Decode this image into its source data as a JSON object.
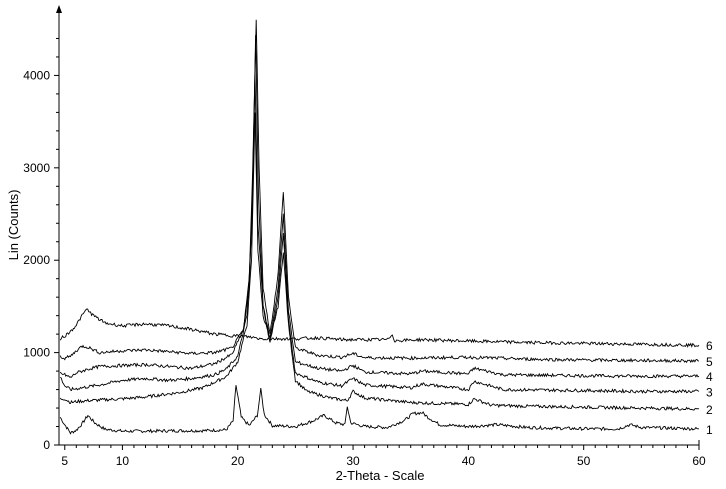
{
  "colors": {
    "background": "#ffffff",
    "ink": "#000000"
  },
  "chart_data": {
    "type": "line",
    "title": "",
    "xlabel": "2-Theta - Scale",
    "ylabel": "Lin (Counts)",
    "xlim": [
      4.5,
      60
    ],
    "ylim": [
      0,
      4600
    ],
    "x_ticks": [
      5,
      10,
      20,
      30,
      40,
      50,
      60
    ],
    "x_tick_labels": [
      "5",
      "10",
      "20",
      "30",
      "40",
      "50",
      "60"
    ],
    "y_ticks": [
      0,
      1000,
      2000,
      3000,
      4000
    ],
    "y_tick_labels": [
      "0",
      "1000",
      "2000",
      "3000",
      "4000"
    ],
    "grid": false,
    "legend": "curve numbers at right end",
    "series": [
      {
        "name": "1",
        "points": [
          [
            4.6,
            300
          ],
          [
            5,
            220
          ],
          [
            5.5,
            130
          ],
          [
            6,
            160
          ],
          [
            6.5,
            230
          ],
          [
            7,
            320
          ],
          [
            7.6,
            240
          ],
          [
            8.5,
            170
          ],
          [
            10,
            150
          ],
          [
            12,
            150
          ],
          [
            15,
            155
          ],
          [
            17,
            155
          ],
          [
            19,
            165
          ],
          [
            19.6,
            260
          ],
          [
            19.85,
            650
          ],
          [
            20.3,
            300
          ],
          [
            21,
            210
          ],
          [
            21.7,
            320
          ],
          [
            22,
            600
          ],
          [
            22.3,
            330
          ],
          [
            23,
            210
          ],
          [
            25,
            200
          ],
          [
            26.5,
            260
          ],
          [
            27.5,
            320
          ],
          [
            28.5,
            240
          ],
          [
            29.3,
            220
          ],
          [
            29.5,
            420
          ],
          [
            29.8,
            240
          ],
          [
            31,
            200
          ],
          [
            33,
            190
          ],
          [
            34.5,
            270
          ],
          [
            35.2,
            340
          ],
          [
            36,
            350
          ],
          [
            36.5,
            300
          ],
          [
            37.5,
            220
          ],
          [
            40,
            200
          ],
          [
            42.5,
            220
          ],
          [
            45,
            190
          ],
          [
            50,
            175
          ],
          [
            53,
            175
          ],
          [
            54,
            220
          ],
          [
            55,
            190
          ],
          [
            60,
            175
          ]
        ]
      },
      {
        "name": "2",
        "points": [
          [
            4.6,
            500
          ],
          [
            5,
            500
          ],
          [
            5.5,
            460
          ],
          [
            6,
            470
          ],
          [
            7,
            480
          ],
          [
            10,
            500
          ],
          [
            12,
            520
          ],
          [
            15,
            570
          ],
          [
            17,
            620
          ],
          [
            19,
            740
          ],
          [
            20,
            900
          ],
          [
            20.8,
            1300
          ],
          [
            21.2,
            2000
          ],
          [
            21.5,
            3600
          ],
          [
            21.75,
            2100
          ],
          [
            22.2,
            1400
          ],
          [
            22.8,
            1150
          ],
          [
            23.5,
            1500
          ],
          [
            23.95,
            2100
          ],
          [
            24.4,
            1300
          ],
          [
            25,
            700
          ],
          [
            26,
            580
          ],
          [
            28,
            510
          ],
          [
            29.5,
            480
          ],
          [
            30,
            580
          ],
          [
            31,
            510
          ],
          [
            35,
            460
          ],
          [
            40,
            440
          ],
          [
            40.5,
            500
          ],
          [
            42,
            430
          ],
          [
            45,
            420
          ],
          [
            50,
            410
          ],
          [
            55,
            400
          ],
          [
            60,
            390
          ]
        ]
      },
      {
        "name": "3",
        "points": [
          [
            4.6,
            740
          ],
          [
            5,
            640
          ],
          [
            5.5,
            600
          ],
          [
            6,
            610
          ],
          [
            7,
            630
          ],
          [
            8,
            650
          ],
          [
            10,
            700
          ],
          [
            12,
            720
          ],
          [
            14,
            700
          ],
          [
            16,
            720
          ],
          [
            18,
            760
          ],
          [
            19,
            820
          ],
          [
            20,
            960
          ],
          [
            20.8,
            1400
          ],
          [
            21.2,
            2300
          ],
          [
            21.5,
            4000
          ],
          [
            21.75,
            2400
          ],
          [
            22.2,
            1500
          ],
          [
            22.8,
            1100
          ],
          [
            23.5,
            1600
          ],
          [
            23.95,
            2300
          ],
          [
            24.4,
            1350
          ],
          [
            25,
            780
          ],
          [
            27,
            680
          ],
          [
            29,
            640
          ],
          [
            30,
            720
          ],
          [
            31,
            650
          ],
          [
            35,
            620
          ],
          [
            36,
            660
          ],
          [
            40,
            600
          ],
          [
            40.5,
            690
          ],
          [
            43,
            600
          ],
          [
            50,
            590
          ],
          [
            55,
            580
          ],
          [
            60,
            580
          ]
        ]
      },
      {
        "name": "4",
        "points": [
          [
            4.6,
            780
          ],
          [
            5,
            760
          ],
          [
            5.5,
            730
          ],
          [
            6,
            780
          ],
          [
            7,
            820
          ],
          [
            8,
            850
          ],
          [
            10,
            860
          ],
          [
            12,
            870
          ],
          [
            14,
            850
          ],
          [
            16,
            830
          ],
          [
            18,
            880
          ],
          [
            19.5,
            980
          ],
          [
            20.5,
            1250
          ],
          [
            21,
            1700
          ],
          [
            21.3,
            2800
          ],
          [
            21.55,
            4450
          ],
          [
            21.8,
            2700
          ],
          [
            22.2,
            1500
          ],
          [
            22.8,
            1150
          ],
          [
            23.5,
            1700
          ],
          [
            23.95,
            2500
          ],
          [
            24.4,
            1450
          ],
          [
            25,
            900
          ],
          [
            27,
            830
          ],
          [
            29,
            800
          ],
          [
            30,
            860
          ],
          [
            31,
            790
          ],
          [
            35,
            770
          ],
          [
            36,
            800
          ],
          [
            40,
            770
          ],
          [
            40.5,
            830
          ],
          [
            43,
            760
          ],
          [
            50,
            750
          ],
          [
            55,
            745
          ],
          [
            60,
            745
          ]
        ]
      },
      {
        "name": "5",
        "points": [
          [
            4.6,
            960
          ],
          [
            5,
            940
          ],
          [
            5.5,
            960
          ],
          [
            6,
            1020
          ],
          [
            6.5,
            1070
          ],
          [
            7,
            1060
          ],
          [
            8,
            1000
          ],
          [
            10,
            1020
          ],
          [
            12,
            1030
          ],
          [
            14,
            1010
          ],
          [
            16,
            990
          ],
          [
            18,
            1000
          ],
          [
            19.5,
            1050
          ],
          [
            20.5,
            1250
          ],
          [
            21,
            1800
          ],
          [
            21.3,
            3000
          ],
          [
            21.6,
            4600
          ],
          [
            21.85,
            3000
          ],
          [
            22.2,
            1700
          ],
          [
            22.8,
            1200
          ],
          [
            23.5,
            1850
          ],
          [
            23.95,
            2750
          ],
          [
            24.4,
            1600
          ],
          [
            25,
            1050
          ],
          [
            27,
            970
          ],
          [
            29,
            950
          ],
          [
            30,
            990
          ],
          [
            31,
            945
          ],
          [
            35,
            940
          ],
          [
            40,
            950
          ],
          [
            45,
            930
          ],
          [
            50,
            920
          ],
          [
            55,
            915
          ],
          [
            60,
            910
          ]
        ]
      },
      {
        "name": "6",
        "points": [
          [
            4.6,
            1150
          ],
          [
            5,
            1180
          ],
          [
            5.5,
            1230
          ],
          [
            6,
            1300
          ],
          [
            6.5,
            1400
          ],
          [
            6.9,
            1470
          ],
          [
            7.5,
            1400
          ],
          [
            8.5,
            1320
          ],
          [
            10,
            1290
          ],
          [
            12,
            1310
          ],
          [
            14,
            1290
          ],
          [
            16,
            1250
          ],
          [
            18,
            1200
          ],
          [
            20,
            1180
          ],
          [
            21,
            1170
          ],
          [
            22,
            1150
          ],
          [
            25,
            1150
          ],
          [
            27,
            1160
          ],
          [
            29,
            1140
          ],
          [
            33,
            1140
          ],
          [
            33.4,
            1200
          ],
          [
            33.6,
            1130
          ],
          [
            36,
            1140
          ],
          [
            40,
            1125
          ],
          [
            45,
            1110
          ],
          [
            50,
            1100
          ],
          [
            55,
            1090
          ],
          [
            60,
            1080
          ]
        ]
      }
    ]
  }
}
